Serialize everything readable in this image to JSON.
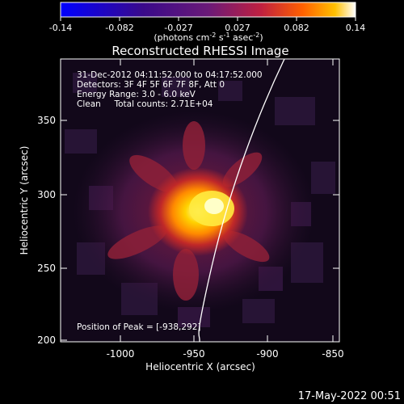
{
  "colorbar": {
    "ticks": [
      "-0.14",
      "-0.082",
      "-0.027",
      "0.027",
      "0.082",
      "0.14"
    ],
    "unit_prefix": "(photons cm",
    "unit_exp1": "-2",
    "unit_mid": " s",
    "unit_exp2": "-1",
    "unit_mid2": " asec",
    "unit_exp3": "-2",
    "unit_suffix": ")"
  },
  "title": "Reconstructed RHESSI Image",
  "info": {
    "time_range": "31-Dec-2012 04:11:52.000 to 04:17:52.000",
    "detectors": "Detectors: 3F 4F 5F 6F 7F 8F, Att 0",
    "energy": "Energy Range: 3.0 - 6.0 keV",
    "clean": "Clean     Total counts: 2.71E+04",
    "peak": "Position of Peak = [-938,292]"
  },
  "axes": {
    "xlabel": "Heliocentric X (arcsec)",
    "ylabel": "Heliocentric Y (arcsec)",
    "xticks": [
      "-1000",
      "-950",
      "-900",
      "-850"
    ],
    "yticks": [
      "200",
      "250",
      "300",
      "350"
    ]
  },
  "footer": {
    "timestamp": "17-May-2022 00:51"
  },
  "colors": {
    "background": "#000000",
    "limb_line": "#ffffff"
  }
}
